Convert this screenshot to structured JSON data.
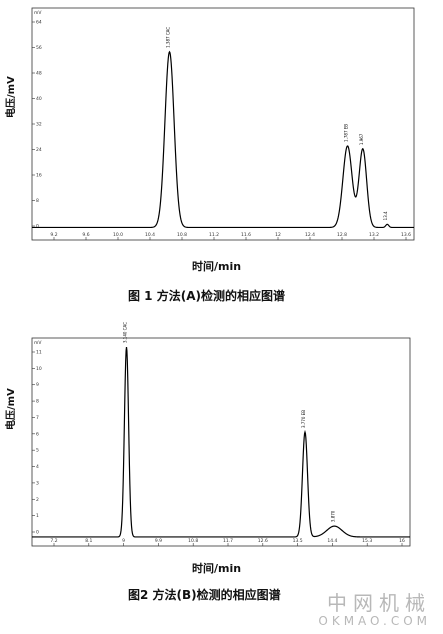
{
  "figures": [
    {
      "ylabel": "电压/mV",
      "xlabel": "时间/min",
      "caption": "图 1  方法(A)检测的相应图谱",
      "unit_tag": "mV",
      "chart_data": {
        "type": "line",
        "xlim": [
          8.6,
          13.6
        ],
        "ylim": [
          -4,
          70
        ],
        "x_ticks": [
          "9.2",
          "9.6",
          "10.0",
          "10.4",
          "10.8",
          "11.2",
          "11.6",
          "12",
          "12.4",
          "12.8",
          "13.2",
          "13.6"
        ],
        "y_ticks": [
          "64",
          "56",
          "48",
          "40",
          "32",
          "24",
          "16",
          "8",
          "0"
        ],
        "peaks": [
          {
            "center": 10.4,
            "height": 56,
            "width": 0.06,
            "label": "1.387 CAC"
          },
          {
            "center": 12.73,
            "height": 26,
            "width": 0.06,
            "label": "1.787 EB"
          },
          {
            "center": 12.93,
            "height": 25,
            "width": 0.05,
            "label": "1.967"
          },
          {
            "center": 13.25,
            "height": 1,
            "width": 0.02,
            "label": "13.4"
          }
        ]
      }
    },
    {
      "ylabel": "电压/mV",
      "xlabel": "时间/min",
      "caption": "图2  方法(B)检测的相应图谱",
      "unit_tag": "mV",
      "chart_data": {
        "type": "line",
        "xlim": [
          7.0,
          16.0
        ],
        "ylim": [
          -0.5,
          11
        ],
        "x_ticks": [
          "7.2",
          "8.1",
          "9",
          "9.9",
          "10.8",
          "11.7",
          "12.6",
          "13.5",
          "14.4",
          "15.3",
          "16"
        ],
        "y_ticks": [
          "11",
          "10",
          "9",
          "8",
          "7",
          "6",
          "5",
          "4",
          "3",
          "2",
          "1",
          "0"
        ],
        "peaks": [
          {
            "center": 9.25,
            "height": 10.5,
            "width": 0.05,
            "label": "3.140 CAC"
          },
          {
            "center": 13.5,
            "height": 5.8,
            "width": 0.06,
            "label": "3.770 EB"
          },
          {
            "center": 14.2,
            "height": 0.6,
            "width": 0.18,
            "label": "3.870"
          }
        ]
      }
    }
  ],
  "watermark": {
    "cn": "中网机械",
    "en": "OKMAO.COM"
  }
}
